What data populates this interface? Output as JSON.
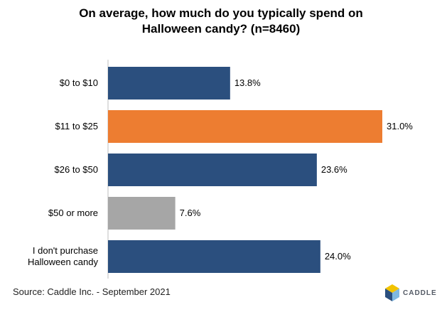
{
  "chart_data": {
    "type": "bar",
    "orientation": "horizontal",
    "title_lines": [
      "On average, how much do you typically spend on",
      "Halloween candy? (n=8460)"
    ],
    "categories": [
      [
        "$0 to $10"
      ],
      [
        "$11 to $25"
      ],
      [
        "$26 to $50"
      ],
      [
        "$50 or more"
      ],
      [
        "I don't purchase",
        "Halloween candy"
      ]
    ],
    "values": [
      13.8,
      31.0,
      23.6,
      7.6,
      24.0
    ],
    "value_labels": [
      "13.8%",
      "31.0%",
      "23.6%",
      "7.6%",
      "24.0%"
    ],
    "bar_colors": [
      "#2b4f7e",
      "#ed7d31",
      "#2b4f7e",
      "#a6a6a6",
      "#2b4f7e"
    ],
    "xlim": [
      0,
      31.0
    ],
    "grid": false,
    "legend": "none"
  },
  "footer": {
    "source": "Source: Caddle Inc. - September 2021"
  },
  "logo": {
    "text": "CADDLE",
    "colors": [
      "#f2c300",
      "#2b4f7e",
      "#7fb8e0"
    ]
  }
}
